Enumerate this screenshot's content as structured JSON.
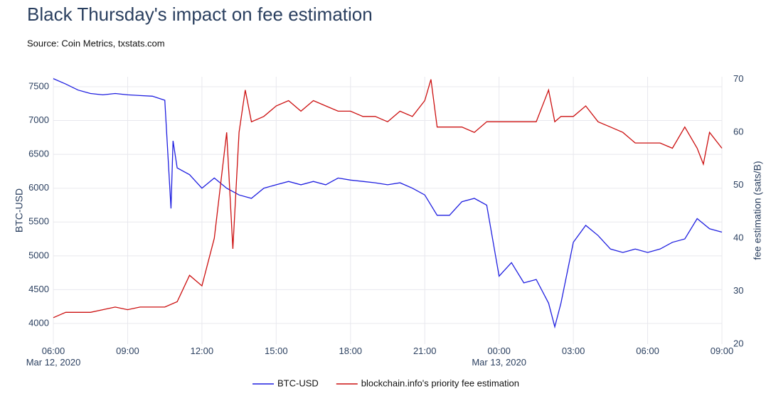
{
  "chart_data": {
    "type": "line",
    "title": "Black Thursday's impact on fee estimation",
    "subtitle": "Source: Coin Metrics, txstats.com",
    "y_label": "BTC-USD",
    "y2_label": "fee estimation (sats/B)",
    "xlim": [
      "2020-03-12T06:00",
      "2020-03-13T09:00"
    ],
    "xticks": [
      {
        "value": "2020-03-12T06:00",
        "label": "06:00\nMar 12, 2020"
      },
      {
        "value": "2020-03-12T09:00",
        "label": "09:00"
      },
      {
        "value": "2020-03-12T12:00",
        "label": "12:00"
      },
      {
        "value": "2020-03-12T15:00",
        "label": "15:00"
      },
      {
        "value": "2020-03-12T18:00",
        "label": "18:00"
      },
      {
        "value": "2020-03-12T21:00",
        "label": "21:00"
      },
      {
        "value": "2020-03-13T00:00",
        "label": "00:00\nMar 13, 2020"
      },
      {
        "value": "2020-03-13T03:00",
        "label": "03:00"
      },
      {
        "value": "2020-03-13T06:00",
        "label": "06:00"
      },
      {
        "value": "2020-03-13T09:00",
        "label": "09:00"
      }
    ],
    "ylim": [
      3695,
      7647
    ],
    "yticks": [
      4000,
      4500,
      5000,
      5500,
      6000,
      6500,
      7000,
      7500
    ],
    "y2lim": [
      20,
      70.5
    ],
    "y2ticks": [
      20,
      30,
      40,
      50,
      60,
      70
    ],
    "grid": true,
    "legend": "bottom",
    "series": [
      {
        "name": "BTC-USD",
        "color": "#1f1fe0",
        "axis": "y",
        "x": [
          "2020-03-12T06:00",
          "2020-03-12T06:30",
          "2020-03-12T07:00",
          "2020-03-12T07:30",
          "2020-03-12T08:00",
          "2020-03-12T08:30",
          "2020-03-12T09:00",
          "2020-03-12T09:30",
          "2020-03-12T10:00",
          "2020-03-12T10:30",
          "2020-03-12T10:45",
          "2020-03-12T10:50",
          "2020-03-12T11:00",
          "2020-03-12T11:30",
          "2020-03-12T12:00",
          "2020-03-12T12:30",
          "2020-03-12T13:00",
          "2020-03-12T13:30",
          "2020-03-12T14:00",
          "2020-03-12T14:30",
          "2020-03-12T15:00",
          "2020-03-12T15:30",
          "2020-03-12T16:00",
          "2020-03-12T16:30",
          "2020-03-12T17:00",
          "2020-03-12T17:30",
          "2020-03-12T18:00",
          "2020-03-12T18:30",
          "2020-03-12T19:00",
          "2020-03-12T19:30",
          "2020-03-12T20:00",
          "2020-03-12T20:30",
          "2020-03-12T21:00",
          "2020-03-12T21:30",
          "2020-03-12T22:00",
          "2020-03-12T22:30",
          "2020-03-12T23:00",
          "2020-03-12T23:30",
          "2020-03-13T00:00",
          "2020-03-13T00:30",
          "2020-03-13T01:00",
          "2020-03-13T01:30",
          "2020-03-13T02:00",
          "2020-03-13T02:15",
          "2020-03-13T02:30",
          "2020-03-13T03:00",
          "2020-03-13T03:30",
          "2020-03-13T04:00",
          "2020-03-13T04:30",
          "2020-03-13T05:00",
          "2020-03-13T05:30",
          "2020-03-13T06:00",
          "2020-03-13T06:30",
          "2020-03-13T07:00",
          "2020-03-13T07:30",
          "2020-03-13T08:00",
          "2020-03-13T08:30",
          "2020-03-13T09:00"
        ],
        "values": [
          7620,
          7540,
          7450,
          7400,
          7380,
          7400,
          7380,
          7370,
          7360,
          7300,
          5700,
          6700,
          6300,
          6200,
          6000,
          6150,
          6000,
          5900,
          5850,
          6000,
          6050,
          6100,
          6050,
          6100,
          6050,
          6150,
          6120,
          6100,
          6080,
          6050,
          6080,
          6000,
          5900,
          5600,
          5600,
          5800,
          5850,
          5750,
          4700,
          4900,
          4600,
          4650,
          4300,
          3950,
          4300,
          5200,
          5450,
          5300,
          5100,
          5050,
          5100,
          5050,
          5100,
          5200,
          5250,
          5550,
          5400,
          5350
        ]
      },
      {
        "name": "blockchain.info's priority fee estimation",
        "color": "#cc1010",
        "axis": "y2",
        "x": [
          "2020-03-12T06:00",
          "2020-03-12T06:30",
          "2020-03-12T07:00",
          "2020-03-12T07:30",
          "2020-03-12T08:00",
          "2020-03-12T08:30",
          "2020-03-12T09:00",
          "2020-03-12T09:30",
          "2020-03-12T10:00",
          "2020-03-12T10:30",
          "2020-03-12T11:00",
          "2020-03-12T11:30",
          "2020-03-12T12:00",
          "2020-03-12T12:30",
          "2020-03-12T13:00",
          "2020-03-12T13:15",
          "2020-03-12T13:30",
          "2020-03-12T13:45",
          "2020-03-12T14:00",
          "2020-03-12T14:30",
          "2020-03-12T15:00",
          "2020-03-12T15:30",
          "2020-03-12T16:00",
          "2020-03-12T16:30",
          "2020-03-12T17:00",
          "2020-03-12T17:30",
          "2020-03-12T18:00",
          "2020-03-12T18:30",
          "2020-03-12T19:00",
          "2020-03-12T19:30",
          "2020-03-12T20:00",
          "2020-03-12T20:30",
          "2020-03-12T21:00",
          "2020-03-12T21:15",
          "2020-03-12T21:30",
          "2020-03-12T22:00",
          "2020-03-12T22:30",
          "2020-03-12T23:00",
          "2020-03-12T23:30",
          "2020-03-13T00:00",
          "2020-03-13T00:30",
          "2020-03-13T01:00",
          "2020-03-13T01:30",
          "2020-03-13T02:00",
          "2020-03-13T02:15",
          "2020-03-13T02:30",
          "2020-03-13T03:00",
          "2020-03-13T03:30",
          "2020-03-13T04:00",
          "2020-03-13T04:30",
          "2020-03-13T05:00",
          "2020-03-13T05:30",
          "2020-03-13T06:00",
          "2020-03-13T06:30",
          "2020-03-13T07:00",
          "2020-03-13T07:30",
          "2020-03-13T08:00",
          "2020-03-13T08:15",
          "2020-03-13T08:30",
          "2020-03-13T09:00"
        ],
        "values": [
          25,
          26,
          26,
          26,
          26.5,
          27,
          26.5,
          27,
          27,
          27,
          28,
          33,
          31,
          40,
          60,
          38,
          60,
          68,
          62,
          63,
          65,
          66,
          64,
          66,
          65,
          64,
          64,
          63,
          63,
          62,
          64,
          63,
          66,
          70,
          61,
          61,
          61,
          60,
          62,
          62,
          62,
          62,
          62,
          68,
          62,
          63,
          63,
          65,
          62,
          61,
          60,
          58,
          58,
          58,
          57,
          61,
          57,
          54,
          60,
          57
        ]
      }
    ]
  }
}
